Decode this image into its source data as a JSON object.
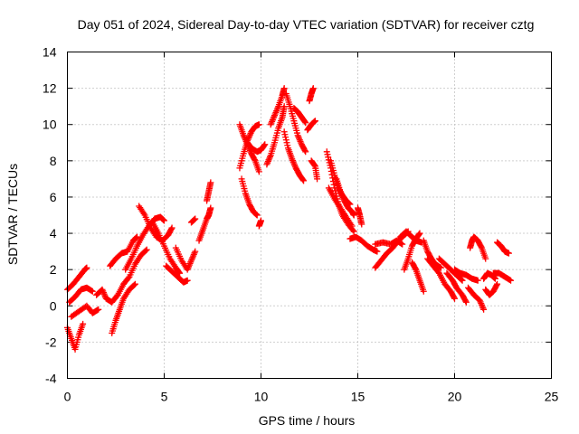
{
  "chart_data": {
    "type": "scatter",
    "title": "Day 051 of 2024, Sidereal Day-to-day VTEC variation (SDTVAR) for receiver cztg",
    "xlabel": "GPS time / hours",
    "ylabel": "SDTVAR / TECUs",
    "xlim": [
      0,
      25
    ],
    "ylim": [
      -4,
      14
    ],
    "xticks": [
      "0",
      "5",
      "10",
      "15",
      "20",
      "25"
    ],
    "yticks": [
      "-4",
      "-2",
      "0",
      "2",
      "4",
      "6",
      "8",
      "10",
      "12",
      "14"
    ],
    "grid": true,
    "marker": "+",
    "color": "#ff0000",
    "series": [
      {
        "name": "SDTVAR",
        "segments": [
          [
            [
              0.0,
              -1.2
            ],
            [
              0.2,
              -1.8
            ],
            [
              0.4,
              -2.4
            ],
            [
              0.6,
              -1.6
            ],
            [
              0.8,
              -1.0
            ]
          ],
          [
            [
              0.0,
              0.9
            ],
            [
              0.3,
              1.2
            ],
            [
              0.6,
              1.6
            ],
            [
              0.9,
              2.0
            ],
            [
              1.0,
              2.1
            ]
          ],
          [
            [
              0.1,
              0.2
            ],
            [
              0.4,
              0.5
            ],
            [
              0.7,
              0.9
            ],
            [
              1.0,
              1.0
            ],
            [
              1.3,
              0.8
            ]
          ],
          [
            [
              0.2,
              -0.6
            ],
            [
              0.6,
              -0.3
            ],
            [
              1.0,
              0.0
            ],
            [
              1.3,
              -0.4
            ],
            [
              1.6,
              -0.2
            ]
          ],
          [
            [
              1.5,
              0.6
            ],
            [
              1.8,
              0.9
            ],
            [
              2.0,
              0.4
            ],
            [
              2.3,
              0.2
            ],
            [
              2.6,
              0.6
            ]
          ],
          [
            [
              2.2,
              2.2
            ],
            [
              2.5,
              2.6
            ],
            [
              2.8,
              2.9
            ],
            [
              3.1,
              3.0
            ],
            [
              3.4,
              3.6
            ],
            [
              3.6,
              3.8
            ]
          ],
          [
            [
              2.3,
              -1.5
            ],
            [
              2.5,
              -0.8
            ],
            [
              2.7,
              -0.2
            ],
            [
              2.9,
              0.4
            ],
            [
              3.2,
              0.9
            ],
            [
              3.5,
              1.2
            ]
          ],
          [
            [
              2.6,
              0.6
            ],
            [
              2.9,
              1.2
            ],
            [
              3.2,
              1.6
            ],
            [
              3.5,
              2.3
            ],
            [
              3.8,
              2.8
            ],
            [
              4.1,
              3.1
            ]
          ],
          [
            [
              3.0,
              2.0
            ],
            [
              3.3,
              2.6
            ],
            [
              3.6,
              3.3
            ],
            [
              3.9,
              3.9
            ],
            [
              4.2,
              4.4
            ],
            [
              4.5,
              4.8
            ],
            [
              4.8,
              4.9
            ],
            [
              5.0,
              4.7
            ]
          ],
          [
            [
              3.7,
              5.5
            ],
            [
              4.0,
              5.0
            ],
            [
              4.3,
              4.3
            ],
            [
              4.6,
              3.8
            ],
            [
              4.9,
              3.6
            ],
            [
              5.2,
              3.9
            ],
            [
              5.4,
              4.3
            ]
          ],
          [
            [
              4.4,
              4.6
            ],
            [
              4.7,
              4.0
            ],
            [
              5.0,
              3.3
            ],
            [
              5.3,
              2.6
            ],
            [
              5.6,
              2.1
            ],
            [
              5.8,
              1.8
            ]
          ],
          [
            [
              5.1,
              2.2
            ],
            [
              5.4,
              1.9
            ],
            [
              5.7,
              1.6
            ],
            [
              6.0,
              1.3
            ],
            [
              6.2,
              1.4
            ]
          ],
          [
            [
              5.6,
              3.2
            ],
            [
              5.9,
              2.5
            ],
            [
              6.2,
              2.0
            ],
            [
              6.4,
              2.5
            ],
            [
              6.6,
              3.0
            ]
          ],
          [
            [
              6.4,
              4.6
            ],
            [
              6.6,
              4.8
            ]
          ],
          [
            [
              6.8,
              3.6
            ],
            [
              7.0,
              4.2
            ],
            [
              7.2,
              4.8
            ],
            [
              7.3,
              5.0
            ],
            [
              7.4,
              5.4
            ]
          ],
          [
            [
              7.2,
              5.8
            ],
            [
              7.3,
              6.3
            ],
            [
              7.4,
              6.8
            ]
          ],
          [
            [
              8.9,
              7.6
            ],
            [
              9.1,
              8.4
            ],
            [
              9.3,
              9.1
            ],
            [
              9.5,
              9.6
            ],
            [
              9.7,
              9.9
            ],
            [
              9.9,
              10.0
            ]
          ],
          [
            [
              8.9,
              10.0
            ],
            [
              9.1,
              9.4
            ],
            [
              9.3,
              8.9
            ],
            [
              9.5,
              8.4
            ],
            [
              9.7,
              8.0
            ],
            [
              9.9,
              7.4
            ]
          ],
          [
            [
              9.0,
              7.0
            ],
            [
              9.2,
              6.2
            ],
            [
              9.4,
              5.6
            ],
            [
              9.6,
              5.2
            ],
            [
              9.8,
              5.0
            ]
          ],
          [
            [
              9.3,
              9.0
            ],
            [
              9.5,
              8.7
            ],
            [
              9.8,
              8.5
            ],
            [
              10.0,
              8.6
            ],
            [
              10.2,
              8.9
            ]
          ],
          [
            [
              9.9,
              4.4
            ],
            [
              10.0,
              4.7
            ]
          ],
          [
            [
              10.3,
              7.8
            ],
            [
              10.5,
              8.3
            ],
            [
              10.7,
              9.0
            ],
            [
              10.9,
              9.8
            ],
            [
              11.1,
              10.4
            ],
            [
              11.2,
              11.0
            ]
          ],
          [
            [
              10.5,
              10.0
            ],
            [
              10.7,
              10.5
            ],
            [
              10.9,
              11.0
            ],
            [
              11.1,
              11.6
            ],
            [
              11.2,
              12.0
            ]
          ],
          [
            [
              11.3,
              11.7
            ],
            [
              11.5,
              11.0
            ],
            [
              11.7,
              10.2
            ],
            [
              11.9,
              9.4
            ],
            [
              12.1,
              8.9
            ],
            [
              12.3,
              8.5
            ]
          ],
          [
            [
              11.2,
              9.6
            ],
            [
              11.4,
              8.7
            ],
            [
              11.6,
              8.1
            ],
            [
              11.8,
              7.6
            ],
            [
              12.0,
              7.2
            ],
            [
              12.2,
              6.9
            ]
          ],
          [
            [
              11.7,
              10.9
            ],
            [
              11.9,
              10.7
            ],
            [
              12.1,
              10.4
            ],
            [
              12.3,
              10.1
            ]
          ],
          [
            [
              12.4,
              9.7
            ],
            [
              12.6,
              10.0
            ],
            [
              12.8,
              10.2
            ]
          ],
          [
            [
              12.5,
              11.3
            ],
            [
              12.6,
              11.7
            ],
            [
              12.7,
              12.0
            ]
          ],
          [
            [
              12.6,
              8.0
            ],
            [
              12.8,
              7.7
            ],
            [
              12.9,
              7.0
            ]
          ],
          [
            [
              13.4,
              8.5
            ],
            [
              13.6,
              7.6
            ],
            [
              13.8,
              6.5
            ],
            [
              14.0,
              5.6
            ],
            [
              14.2,
              5.0
            ],
            [
              14.5,
              4.5
            ],
            [
              14.8,
              4.1
            ]
          ],
          [
            [
              13.6,
              8.0
            ],
            [
              13.8,
              7.2
            ],
            [
              14.0,
              6.5
            ],
            [
              14.2,
              6.1
            ],
            [
              14.4,
              5.8
            ],
            [
              14.6,
              5.6
            ]
          ],
          [
            [
              13.5,
              6.5
            ],
            [
              13.8,
              5.9
            ],
            [
              14.1,
              5.4
            ],
            [
              14.4,
              4.9
            ],
            [
              14.7,
              4.4
            ]
          ],
          [
            [
              13.9,
              7.0
            ],
            [
              14.1,
              6.3
            ],
            [
              14.3,
              5.8
            ],
            [
              14.5,
              5.4
            ],
            [
              14.7,
              5.2
            ],
            [
              14.8,
              5.0
            ]
          ],
          [
            [
              15.0,
              5.4
            ],
            [
              15.1,
              5.0
            ],
            [
              15.2,
              4.5
            ]
          ],
          [
            [
              14.6,
              3.7
            ],
            [
              14.9,
              3.8
            ],
            [
              15.2,
              3.6
            ],
            [
              15.5,
              3.3
            ],
            [
              15.8,
              3.1
            ],
            [
              16.0,
              3.0
            ]
          ],
          [
            [
              15.9,
              3.4
            ],
            [
              16.3,
              3.5
            ],
            [
              16.7,
              3.4
            ],
            [
              17.0,
              3.6
            ],
            [
              17.3,
              3.4
            ]
          ],
          [
            [
              15.9,
              2.1
            ],
            [
              16.2,
              2.5
            ],
            [
              16.5,
              2.9
            ],
            [
              16.8,
              3.2
            ],
            [
              17.1,
              3.6
            ],
            [
              17.4,
              3.9
            ],
            [
              17.6,
              4.1
            ]
          ],
          [
            [
              17.2,
              3.8
            ],
            [
              17.5,
              4.1
            ],
            [
              17.8,
              3.8
            ],
            [
              18.0,
              3.6
            ],
            [
              18.3,
              3.5
            ]
          ],
          [
            [
              17.4,
              2.0
            ],
            [
              17.6,
              2.6
            ],
            [
              17.8,
              3.3
            ],
            [
              18.0,
              3.7
            ],
            [
              18.2,
              4.0
            ]
          ],
          [
            [
              17.8,
              2.4
            ],
            [
              18.0,
              2.0
            ],
            [
              18.2,
              1.4
            ],
            [
              18.4,
              0.8
            ]
          ],
          [
            [
              18.4,
              3.6
            ],
            [
              18.6,
              3.0
            ],
            [
              18.8,
              2.6
            ],
            [
              19.0,
              2.3
            ],
            [
              19.3,
              2.1
            ]
          ],
          [
            [
              18.6,
              2.6
            ],
            [
              18.9,
              2.2
            ],
            [
              19.2,
              1.8
            ],
            [
              19.5,
              1.2
            ],
            [
              19.8,
              0.8
            ],
            [
              20.0,
              0.4
            ]
          ],
          [
            [
              19.2,
              2.6
            ],
            [
              19.5,
              2.3
            ],
            [
              19.8,
              2.0
            ],
            [
              20.1,
              1.7
            ],
            [
              20.4,
              1.4
            ]
          ],
          [
            [
              19.6,
              1.8
            ],
            [
              19.9,
              1.4
            ],
            [
              20.1,
              1.0
            ],
            [
              20.4,
              0.6
            ],
            [
              20.6,
              0.2
            ]
          ],
          [
            [
              20.0,
              2.0
            ],
            [
              20.3,
              1.8
            ],
            [
              20.6,
              1.7
            ],
            [
              20.9,
              1.5
            ],
            [
              21.2,
              1.4
            ]
          ],
          [
            [
              20.7,
              1.0
            ],
            [
              21.0,
              0.6
            ],
            [
              21.3,
              0.3
            ],
            [
              21.5,
              -0.2
            ]
          ],
          [
            [
              20.8,
              3.2
            ],
            [
              20.9,
              3.6
            ],
            [
              21.0,
              3.8
            ],
            [
              21.2,
              3.6
            ],
            [
              21.4,
              3.2
            ],
            [
              21.6,
              2.6
            ]
          ],
          [
            [
              21.5,
              1.5
            ],
            [
              21.7,
              1.8
            ],
            [
              21.9,
              1.7
            ],
            [
              22.1,
              1.5
            ]
          ],
          [
            [
              21.6,
              0.9
            ],
            [
              21.8,
              0.6
            ],
            [
              22.0,
              0.8
            ],
            [
              22.2,
              1.2
            ]
          ],
          [
            [
              22.0,
              1.8
            ],
            [
              22.3,
              1.8
            ],
            [
              22.6,
              1.6
            ],
            [
              22.9,
              1.4
            ]
          ],
          [
            [
              22.2,
              3.5
            ],
            [
              22.4,
              3.3
            ],
            [
              22.6,
              3.0
            ],
            [
              22.8,
              2.9
            ]
          ]
        ]
      }
    ]
  }
}
